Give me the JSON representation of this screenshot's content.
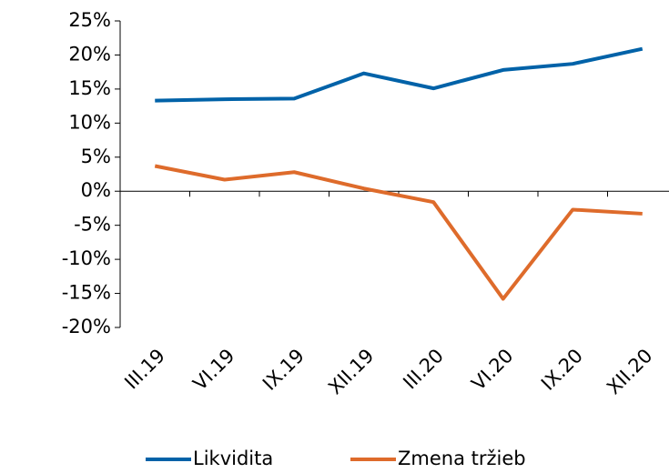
{
  "chart_data": {
    "type": "line",
    "categories": [
      "III.19",
      "VI.19",
      "IX.19",
      "XII.19",
      "III.20",
      "VI.20",
      "IX.20",
      "XII.20"
    ],
    "series": [
      {
        "name": "Likvidita",
        "color": "#0062a8",
        "values": [
          13.3,
          13.5,
          13.6,
          17.3,
          15.1,
          17.8,
          18.7,
          20.9
        ]
      },
      {
        "name": "Zmena tržieb",
        "color": "#de6b2b",
        "values": [
          3.7,
          1.7,
          2.8,
          0.4,
          -1.6,
          -15.8,
          -2.7,
          -3.3
        ]
      }
    ],
    "ylim": [
      -20,
      25
    ],
    "yticks": [
      {
        "value": -20,
        "label": "-20%"
      },
      {
        "value": -15,
        "label": "-15%"
      },
      {
        "value": -10,
        "label": "-10%"
      },
      {
        "value": -5,
        "label": "-5%"
      },
      {
        "value": 0,
        "label": "0%"
      },
      {
        "value": 5,
        "label": "5%"
      },
      {
        "value": 10,
        "label": "10%"
      },
      {
        "value": 15,
        "label": "15%"
      },
      {
        "value": 20,
        "label": "20%"
      },
      {
        "value": 25,
        "label": "25%"
      }
    ],
    "legend": "bottom"
  }
}
